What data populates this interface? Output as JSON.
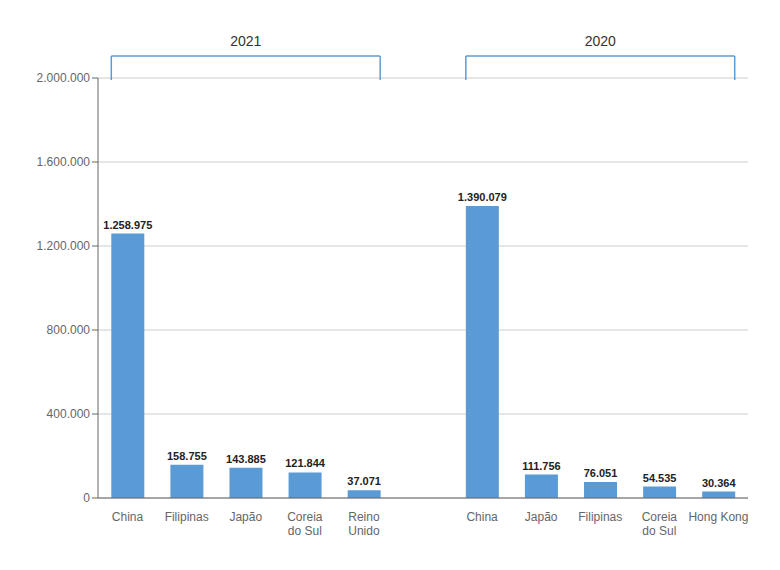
{
  "chart_data": {
    "type": "bar",
    "groups": [
      {
        "label": "2021",
        "categories": [
          "China",
          "Filipinas",
          "Japão",
          "Coreia\ndo Sul",
          "Reino\nUnido"
        ],
        "values": [
          1258975,
          158755,
          143885,
          121844,
          37071
        ],
        "value_labels": [
          "1.258.975",
          "158.755",
          "143.885",
          "121.844",
          "37.071"
        ]
      },
      {
        "label": "2020",
        "categories": [
          "China",
          "Japão",
          "Filipinas",
          "Coreia\ndo Sul",
          "Hong Kong"
        ],
        "values": [
          1390079,
          111756,
          76051,
          54535,
          30364
        ],
        "value_labels": [
          "1.390.079",
          "111.756",
          "76.051",
          "54.535",
          "30.364"
        ]
      }
    ],
    "color": "#5B9BD5",
    "ylim": [
      0,
      2000000
    ],
    "yticks": [
      0,
      {
        "value": 400000,
        "label": "400.000"
      },
      {
        "value": 800000,
        "label": "800.000"
      },
      {
        "value": 1200000,
        "label": "1.200.000"
      },
      {
        "value": 1600000,
        "label": "1.600.000"
      },
      {
        "value": 2000000,
        "label": "2.000.000"
      }
    ],
    "grid": true
  }
}
